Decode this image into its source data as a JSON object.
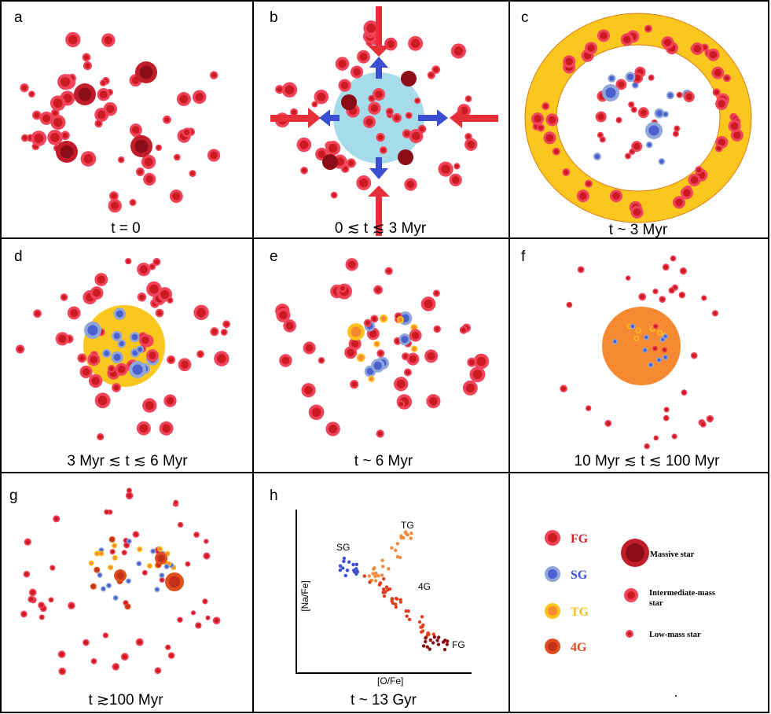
{
  "panels": [
    {
      "letter": "a",
      "caption": "t = 0"
    },
    {
      "letter": "b",
      "caption": "0 ≲ t ≲ 3 Myr"
    },
    {
      "letter": "c",
      "caption": "t ~ 3 Myr"
    },
    {
      "letter": "d",
      "caption": "3 Myr ≲ t ≲ 6 Myr"
    },
    {
      "letter": "e",
      "caption": "t ~ 6 Myr"
    },
    {
      "letter": "f",
      "caption": "10 Myr ≲ t ≲ 100 Myr"
    },
    {
      "letter": "g",
      "caption": "t ≳100 Myr"
    },
    {
      "letter": "h",
      "caption": "t ~ 13 Gyr"
    }
  ],
  "plot": {
    "xlabel": "[O/Fe]",
    "ylabel": "[Na/Fe]",
    "labels": {
      "sg": "SG",
      "tg": "TG",
      "g4": "4G",
      "fg": "FG"
    }
  },
  "legend": {
    "fg": "FG",
    "sg": "SG",
    "tg": "TG",
    "g4": "4G",
    "massive": "Massive star",
    "intermediate_line1": "Intermediate-mass",
    "intermediate_line2": "star",
    "low": "Low-mass star"
  },
  "colors": {
    "fg_core": "#cc1a22",
    "fg_halo": "#f0445a",
    "massive": "#8b0d16",
    "sg": "#4a5fd0",
    "sg_halo": "#8fa6d8",
    "tg": "#ffc21a",
    "g4": "#e0501f",
    "gas_blue": "#a6dcea",
    "gas_yellow": "#fbc61e",
    "gas_orange": "#f68a33",
    "arrow_red": "#e5303a",
    "arrow_blue": "#3b4ecf",
    "legend_fg": "#d1232b",
    "legend_sg": "#3d4ed0",
    "legend_tg": "#f7c11a",
    "legend_4g": "#de4e20"
  }
}
